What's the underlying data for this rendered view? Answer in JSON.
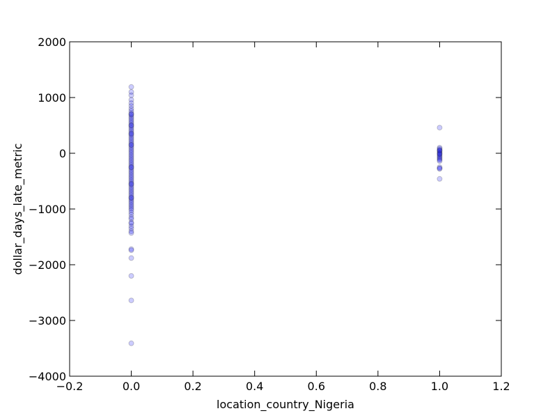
{
  "chart_data": {
    "type": "scatter",
    "title": "",
    "xlabel": "location_country_Nigeria",
    "ylabel": "dollar_days_late_metric",
    "xlim": [
      -0.2,
      1.2
    ],
    "ylim": [
      -4000,
      2000
    ],
    "xticks": [
      -0.2,
      0.0,
      0.2,
      0.4,
      0.6,
      0.8,
      1.0,
      1.2
    ],
    "xtick_labels": [
      "−0.2",
      "0.0",
      "0.2",
      "0.4",
      "0.6",
      "0.8",
      "1.0",
      "1.2"
    ],
    "yticks": [
      -4000,
      -3000,
      -2000,
      -1000,
      0,
      1000,
      2000
    ],
    "ytick_labels": [
      "−4000",
      "−3000",
      "−2000",
      "−1000",
      "0",
      "1000",
      "2000"
    ],
    "grid": false,
    "marker_color": "#0000ff",
    "marker_edge_color": "#000000",
    "series": [
      {
        "x": [
          0,
          0,
          0,
          0,
          0,
          0,
          0,
          0,
          0,
          0,
          0,
          0,
          0,
          0,
          0,
          0,
          0,
          0,
          0,
          0,
          0,
          0,
          0,
          0,
          0,
          0,
          0,
          0,
          0,
          0,
          0,
          0,
          0,
          0,
          0,
          0,
          0,
          0,
          0,
          0,
          0,
          0,
          0,
          0,
          0,
          0,
          0,
          0,
          0,
          0,
          0,
          0,
          0,
          0,
          0,
          0,
          0,
          0,
          0,
          0,
          0,
          0,
          0,
          0,
          0,
          0,
          0,
          0,
          0,
          0,
          0,
          0,
          0,
          0,
          0,
          0,
          0,
          0,
          0,
          0,
          0,
          0,
          0,
          0,
          0,
          0,
          0,
          0,
          0,
          0
        ],
        "y": [
          1190,
          1100,
          1040,
          960,
          900,
          850,
          800,
          760,
          720,
          690,
          660,
          630,
          600,
          570,
          540,
          510,
          480,
          450,
          420,
          390,
          360,
          330,
          300,
          270,
          240,
          210,
          180,
          150,
          120,
          90,
          60,
          30,
          0,
          -30,
          -60,
          -90,
          -120,
          -150,
          -180,
          -210,
          -240,
          -270,
          -300,
          -330,
          -360,
          -390,
          -420,
          -450,
          -480,
          -510,
          -540,
          -570,
          -600,
          -630,
          -660,
          -690,
          -720,
          -750,
          -780,
          -810,
          -840,
          -870,
          -900,
          -930,
          -960,
          -990,
          -1020,
          -1060,
          -1100,
          -1150,
          -1180,
          -1240,
          -1260,
          -1310,
          -1350,
          -1400,
          -1430,
          -1720,
          -1740,
          -1880,
          -2200,
          -2640,
          -3410,
          150,
          350,
          500,
          -250,
          -550,
          -800,
          700
        ]
      },
      {
        "x": [
          1,
          1,
          1,
          1,
          1,
          1,
          1,
          1,
          1,
          1,
          1,
          1,
          1,
          1,
          1,
          1,
          1,
          1,
          1,
          1
        ],
        "y": [
          460,
          100,
          80,
          60,
          40,
          20,
          0,
          -20,
          -40,
          -60,
          -80,
          -100,
          -120,
          -140,
          -250,
          -270,
          -280,
          -460,
          50,
          -10
        ]
      }
    ]
  }
}
